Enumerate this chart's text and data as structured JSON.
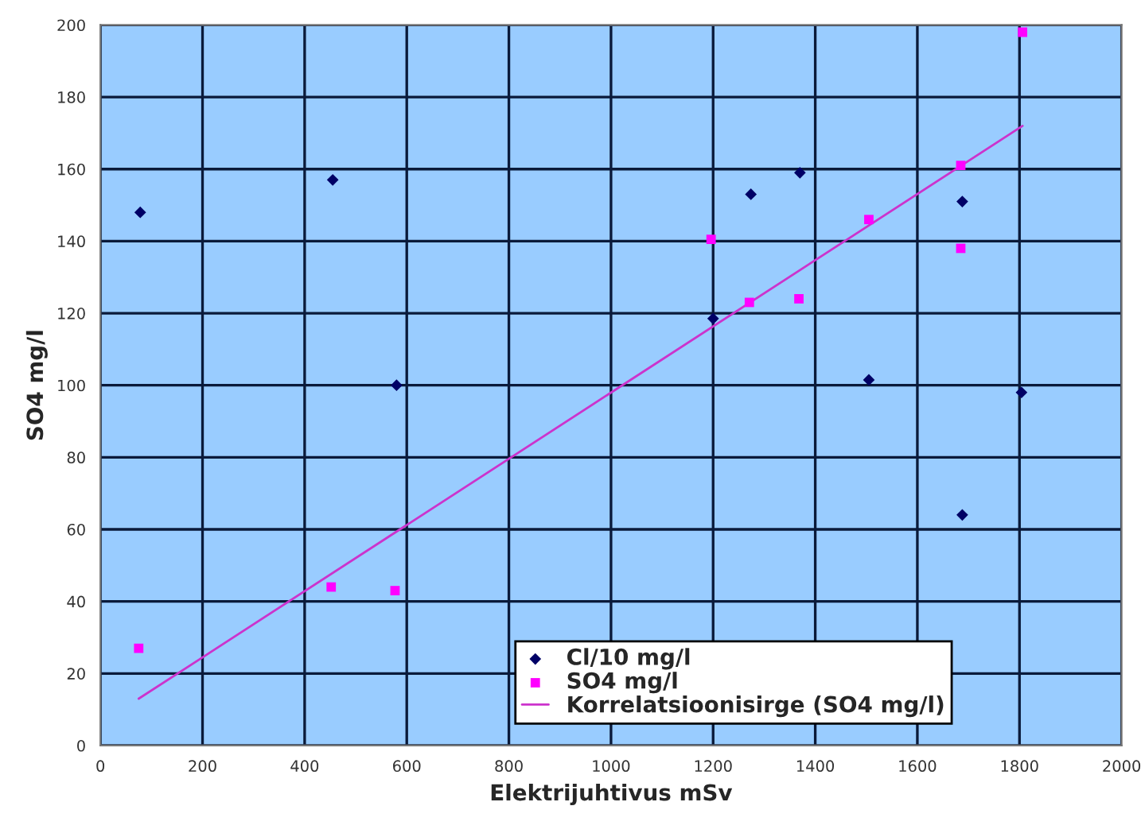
{
  "chart_data": {
    "type": "scatter",
    "xlabel": "Elektrijuhtivus mSv",
    "ylabel": "SO4 mg/l",
    "xlim": [
      0,
      2000
    ],
    "xticks": [
      0,
      200,
      400,
      600,
      800,
      1000,
      1200,
      1400,
      1600,
      1800,
      2000
    ],
    "ylim": [
      0,
      200
    ],
    "yticks": [
      0,
      20,
      40,
      60,
      80,
      100,
      120,
      140,
      160,
      180,
      200
    ],
    "grid": true,
    "legend": "bottom",
    "series": [
      {
        "name": "Cl/10 mg/l",
        "marker": "diamond",
        "color": "#000066",
        "x": [
          78,
          455,
          580,
          1200,
          1274,
          1370,
          1505,
          1688,
          1688,
          1804
        ],
        "values": [
          148,
          157,
          100,
          118.5,
          153,
          159,
          101.5,
          151,
          64,
          98
        ]
      },
      {
        "name": "SO4 mg/l",
        "marker": "square",
        "color": "#ff00ff",
        "x": [
          75,
          452,
          577,
          1196,
          1271,
          1368,
          1505,
          1685,
          1685,
          1806
        ],
        "values": [
          27,
          44,
          43,
          140.5,
          123,
          124,
          146,
          161,
          138,
          198
        ]
      },
      {
        "name": "Korrelatsioonisirge (SO4 mg/l)",
        "type": "line",
        "marker": "none",
        "color": "#cc33cc",
        "x": [
          75,
          1806
        ],
        "values": [
          13,
          172
        ]
      }
    ]
  }
}
